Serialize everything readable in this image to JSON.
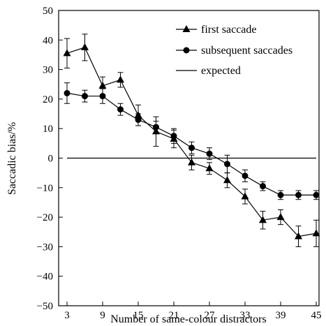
{
  "chart_data": {
    "type": "line",
    "xlabel": "Number of same-colour distractors",
    "ylabel": "Saccadic bias/%",
    "xlim": [
      3,
      45
    ],
    "ylim": [
      -50,
      50
    ],
    "x_ticks": [
      3,
      9,
      15,
      21,
      27,
      33,
      39,
      45
    ],
    "y_ticks": [
      50,
      40,
      30,
      20,
      10,
      0,
      -10,
      -20,
      -30,
      -40,
      -50
    ],
    "x_tick_labels": [
      "3",
      "9",
      "15",
      "21",
      "27",
      "33",
      "39",
      "45"
    ],
    "y_tick_labels": [
      "50",
      "40",
      "30",
      "20",
      "10",
      "0",
      "−10",
      "−20",
      "−30",
      "−40",
      "−50"
    ],
    "x": [
      3,
      6,
      9,
      12,
      15,
      18,
      21,
      24,
      27,
      30,
      33,
      36,
      39,
      42,
      45
    ],
    "series": [
      {
        "name": "first saccade",
        "marker": "triangle",
        "values": [
          35.5,
          37.5,
          24.5,
          26.5,
          14.5,
          9.0,
          6.5,
          -1.5,
          -3.5,
          -7.5,
          -13.0,
          -21.0,
          -20.0,
          -26.5,
          -25.5
        ],
        "errors": [
          5.0,
          4.5,
          3.0,
          2.5,
          3.5,
          5.0,
          3.0,
          2.5,
          2.0,
          2.5,
          2.5,
          3.0,
          2.5,
          3.5,
          4.5
        ]
      },
      {
        "name": "subsequent saccades",
        "marker": "circle",
        "values": [
          22.0,
          21.0,
          21.0,
          16.5,
          13.0,
          10.5,
          7.5,
          3.5,
          1.5,
          -2.0,
          -6.0,
          -9.5,
          -12.5,
          -12.5,
          -12.5
        ],
        "errors": [
          3.5,
          2.0,
          2.5,
          2.0,
          2.0,
          2.0,
          2.5,
          2.0,
          2.0,
          3.0,
          2.0,
          1.5,
          1.5,
          1.5,
          1.5
        ]
      },
      {
        "name": "expected",
        "marker": "none",
        "values": [
          0,
          0,
          0,
          0,
          0,
          0,
          0,
          0,
          0,
          0,
          0,
          0,
          0,
          0,
          0
        ]
      }
    ],
    "legend_position": "top-right",
    "grid": false
  }
}
